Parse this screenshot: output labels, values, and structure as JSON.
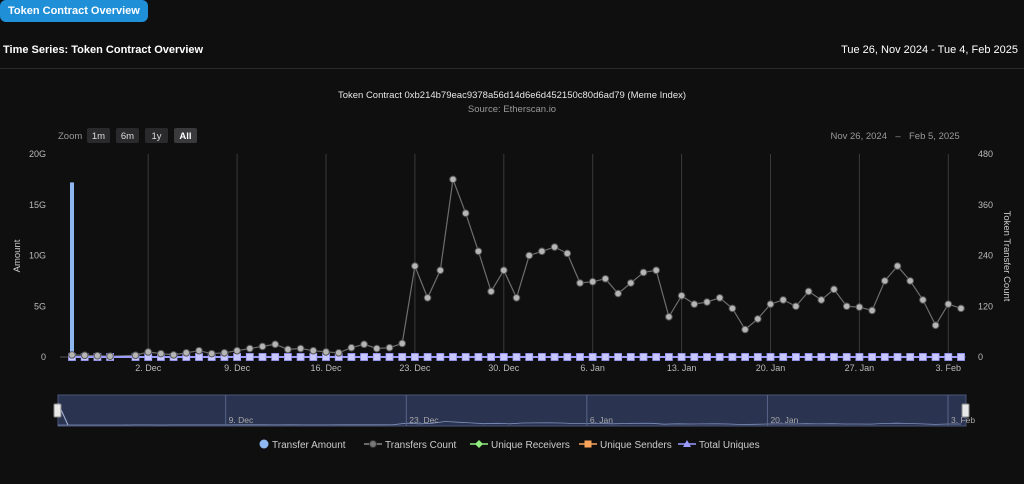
{
  "tab": {
    "label": "Token Contract Overview"
  },
  "header": {
    "title": "Time Series: Token Contract Overview",
    "date_range": "Tue 26, Nov 2024 - Tue 4, Feb 2025"
  },
  "chart_data": {
    "type": "line",
    "title": "Token Contract 0xb214b79eac9378a56d14d6e6d452150c80d6ad79 (Meme Index)",
    "subtitle": "Source: Etherscan.io",
    "ylabel": "Amount",
    "y2label": "Token Transfer Count",
    "ylim": [
      0,
      20
    ],
    "y_ticks": [
      "0",
      "5G",
      "10G",
      "15G",
      "20G"
    ],
    "y2lim": [
      0,
      480
    ],
    "y2_ticks": [
      "0",
      "120",
      "240",
      "360",
      "480"
    ],
    "x_range": [
      "2024-11-26",
      "2025-02-04"
    ],
    "x_ticks": [
      "2. Dec",
      "9. Dec",
      "16. Dec",
      "23. Dec",
      "30. Dec",
      "6. Jan",
      "13. Jan",
      "20. Jan",
      "27. Jan",
      "3. Feb"
    ],
    "navigator_ticks": [
      "9. Dec",
      "23. Dec",
      "6. Jan",
      "20. Jan",
      "3. Feb"
    ],
    "zoom": {
      "label": "Zoom",
      "buttons": [
        "1m",
        "6m",
        "1y",
        "All"
      ],
      "selected": "All"
    },
    "range_display": {
      "from": "Nov 26, 2024",
      "to": "Feb 5, 2025"
    },
    "legend": [
      "Transfer Amount",
      "Transfers Count",
      "Unique Receivers",
      "Unique Senders",
      "Total Uniques"
    ],
    "colors": {
      "transfer_amount": "#8fb8f0",
      "transfers_count": "#888888",
      "unique_receivers": "#90ed7d",
      "unique_senders": "#f7a35c",
      "total_uniques": "#9c9cff",
      "navigator": "#2a3350"
    },
    "series": [
      {
        "name": "Transfer Amount",
        "axis": "left",
        "type": "column",
        "x": [
          "2024-11-26"
        ],
        "values": [
          17.2
        ]
      },
      {
        "name": "Transfers Count",
        "axis": "right",
        "x": [
          "2024-11-26",
          "2024-11-27",
          "2024-11-28",
          "2024-11-29",
          "2024-12-01",
          "2024-12-02",
          "2024-12-03",
          "2024-12-04",
          "2024-12-05",
          "2024-12-06",
          "2024-12-07",
          "2024-12-08",
          "2024-12-09",
          "2024-12-10",
          "2024-12-11",
          "2024-12-12",
          "2024-12-13",
          "2024-12-14",
          "2024-12-15",
          "2024-12-16",
          "2024-12-17",
          "2024-12-18",
          "2024-12-19",
          "2024-12-20",
          "2024-12-21",
          "2024-12-22",
          "2024-12-23",
          "2024-12-24",
          "2024-12-25",
          "2024-12-26",
          "2024-12-27",
          "2024-12-28",
          "2024-12-29",
          "2024-12-30",
          "2024-12-31",
          "2025-01-01",
          "2025-01-02",
          "2025-01-03",
          "2025-01-04",
          "2025-01-05",
          "2025-01-06",
          "2025-01-07",
          "2025-01-08",
          "2025-01-09",
          "2025-01-10",
          "2025-01-11",
          "2025-01-12",
          "2025-01-13",
          "2025-01-14",
          "2025-01-15",
          "2025-01-16",
          "2025-01-17",
          "2025-01-18",
          "2025-01-19",
          "2025-01-20",
          "2025-01-21",
          "2025-01-22",
          "2025-01-23",
          "2025-01-24",
          "2025-01-25",
          "2025-01-26",
          "2025-01-27",
          "2025-01-28",
          "2025-01-29",
          "2025-01-30",
          "2025-01-31",
          "2025-02-01",
          "2025-02-02",
          "2025-02-03",
          "2025-02-04"
        ],
        "values": [
          5,
          4,
          3,
          2,
          4,
          12,
          8,
          5,
          10,
          15,
          8,
          10,
          15,
          20,
          25,
          30,
          18,
          20,
          15,
          12,
          10,
          22,
          30,
          20,
          22,
          32,
          215,
          140,
          205,
          420,
          340,
          250,
          155,
          205,
          140,
          240,
          250,
          260,
          245,
          175,
          178,
          185,
          150,
          175,
          200,
          205,
          95,
          145,
          125,
          130,
          140,
          115,
          65,
          90,
          125,
          135,
          120,
          155,
          135,
          160,
          120,
          118,
          110,
          180,
          215,
          180,
          135,
          75,
          125,
          115
        ]
      },
      {
        "name": "Unique Receivers",
        "axis": "right",
        "values_const": 0
      },
      {
        "name": "Unique Senders",
        "axis": "right",
        "values_const": 0
      },
      {
        "name": "Total Uniques",
        "axis": "right",
        "values_const": 0
      }
    ]
  }
}
